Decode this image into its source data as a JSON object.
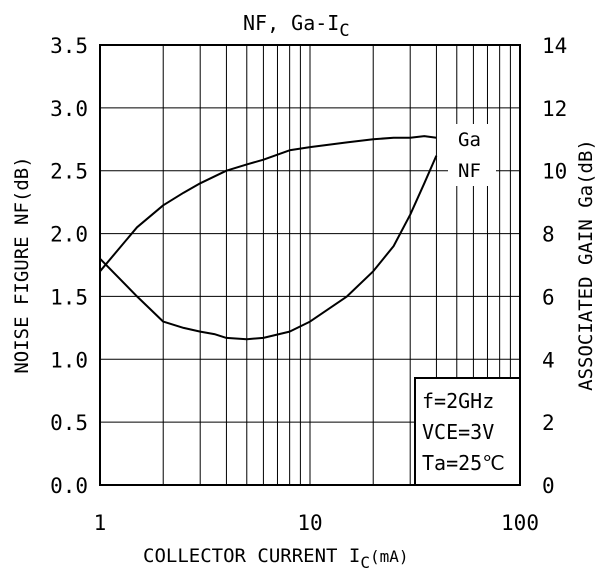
{
  "chart_data": {
    "type": "line",
    "title_main": "NF, Ga-I",
    "title_sub": "C",
    "xlabel_main": "COLLECTOR CURRENT I",
    "xlabel_sub": "C",
    "xlabel_unit": "(mA)",
    "ylabel": "NOISE FIGURE NF(dB)",
    "y2label": "ASSOCIATED GAIN Ga(dB)",
    "x_scale": "log",
    "xlim": [
      1,
      100
    ],
    "ylim": [
      0,
      3.5
    ],
    "y2lim": [
      0,
      14
    ],
    "x_ticks": [
      1,
      10,
      100
    ],
    "x_tick_labels": [
      "1",
      "10",
      "100"
    ],
    "y_ticks": [
      0,
      0.5,
      1.0,
      1.5,
      2.0,
      2.5,
      3.0,
      3.5
    ],
    "y_tick_labels": [
      "0.0",
      "0.5",
      "1.0",
      "1.5",
      "2.0",
      "2.5",
      "3.0",
      "3.5"
    ],
    "y2_ticks": [
      0,
      2,
      4,
      6,
      8,
      10,
      12,
      14
    ],
    "y2_tick_labels": [
      "0",
      "2",
      "4",
      "6",
      "8",
      "10",
      "12",
      "14"
    ],
    "grid": true,
    "series": [
      {
        "name": "Ga",
        "axis": "right",
        "x": [
          1,
          1.5,
          2,
          2.5,
          3,
          4,
          5,
          6,
          8,
          10,
          15,
          20,
          25,
          30,
          35,
          40
        ],
        "values": [
          6.8,
          8.2,
          8.9,
          9.3,
          9.6,
          10.0,
          10.2,
          10.35,
          10.65,
          10.75,
          10.9,
          11.0,
          11.05,
          11.05,
          11.1,
          11.05
        ]
      },
      {
        "name": "NF",
        "axis": "left",
        "x": [
          1,
          1.5,
          2,
          2.5,
          3,
          3.5,
          4,
          5,
          6,
          8,
          10,
          15,
          20,
          25,
          30,
          35,
          40
        ],
        "values": [
          1.8,
          1.5,
          1.3,
          1.25,
          1.22,
          1.2,
          1.17,
          1.16,
          1.17,
          1.22,
          1.3,
          1.5,
          1.7,
          1.9,
          2.15,
          2.4,
          2.62
        ]
      }
    ],
    "legend": [
      "Ga",
      "NF"
    ],
    "conditions": [
      "f=2GHz",
      "VCE=3V",
      "Ta=25℃"
    ]
  }
}
